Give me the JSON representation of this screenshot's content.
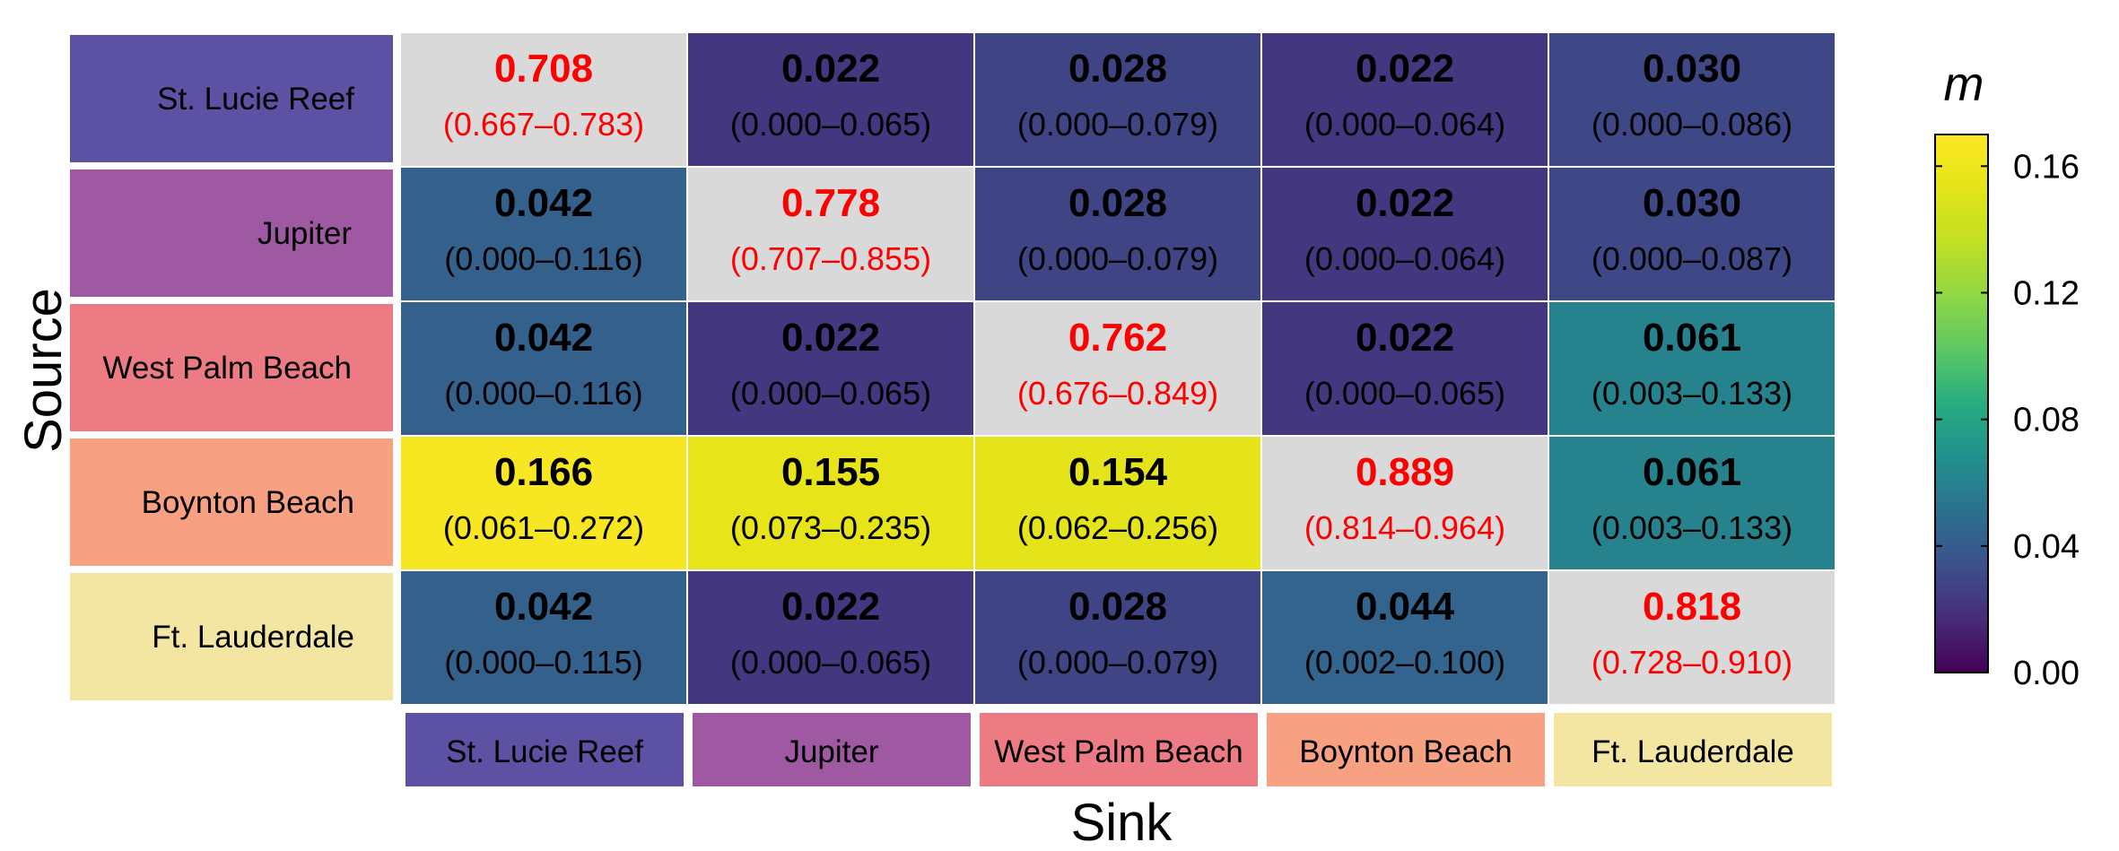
{
  "chart_data": {
    "type": "heatmap",
    "xlabel": "Sink",
    "ylabel": "Source",
    "sources": [
      "St. Lucie Reef",
      "Jupiter",
      "West Palm Beach",
      "Boynton Beach",
      "Ft. Lauderdale"
    ],
    "sinks": [
      "St. Lucie Reef",
      "Jupiter",
      "West Palm Beach",
      "Boynton Beach",
      "Ft. Lauderdale"
    ],
    "values": [
      [
        "0.708",
        "0.022",
        "0.028",
        "0.022",
        "0.030"
      ],
      [
        "0.042",
        "0.778",
        "0.028",
        "0.022",
        "0.030"
      ],
      [
        "0.042",
        "0.022",
        "0.762",
        "0.022",
        "0.061"
      ],
      [
        "0.166",
        "0.155",
        "0.154",
        "0.889",
        "0.061"
      ],
      [
        "0.042",
        "0.022",
        "0.028",
        "0.044",
        "0.818"
      ]
    ],
    "intervals": [
      [
        "(0.667–0.783)",
        "(0.000–0.065)",
        "(0.000–0.079)",
        "(0.000–0.064)",
        "(0.000–0.086)"
      ],
      [
        "(0.000–0.116)",
        "(0.707–0.855)",
        "(0.000–0.079)",
        "(0.000–0.064)",
        "(0.000–0.087)"
      ],
      [
        "(0.000–0.116)",
        "(0.000–0.065)",
        "(0.676–0.849)",
        "(0.000–0.065)",
        "(0.003–0.133)"
      ],
      [
        "(0.061–0.272)",
        "(0.073–0.235)",
        "(0.062–0.256)",
        "(0.814–0.964)",
        "(0.003–0.133)"
      ],
      [
        "(0.000–0.115)",
        "(0.000–0.065)",
        "(0.000–0.079)",
        "(0.002–0.100)",
        "(0.728–0.910)"
      ]
    ],
    "diagonal_fill": "#d9d9d9",
    "diagonal_text_color": "#ff0000",
    "off_diagonal_text_color": "#000000",
    "colorbar": {
      "title": "m",
      "range": [
        0,
        0.17
      ],
      "ticks": [
        "0.00",
        "0.04",
        "0.08",
        "0.12",
        "0.16"
      ],
      "tick_values": [
        0,
        0.04,
        0.08,
        0.12,
        0.16
      ],
      "colormap": "viridis"
    },
    "site_colors": {
      "St. Lucie Reef": "#5c51a3",
      "Jupiter": "#9f59a3",
      "West Palm Beach": "#ec7b84",
      "Boynton Beach": "#f7a082",
      "Ft. Lauderdale": "#f3e6a2"
    },
    "grid": false,
    "legend": "right"
  }
}
